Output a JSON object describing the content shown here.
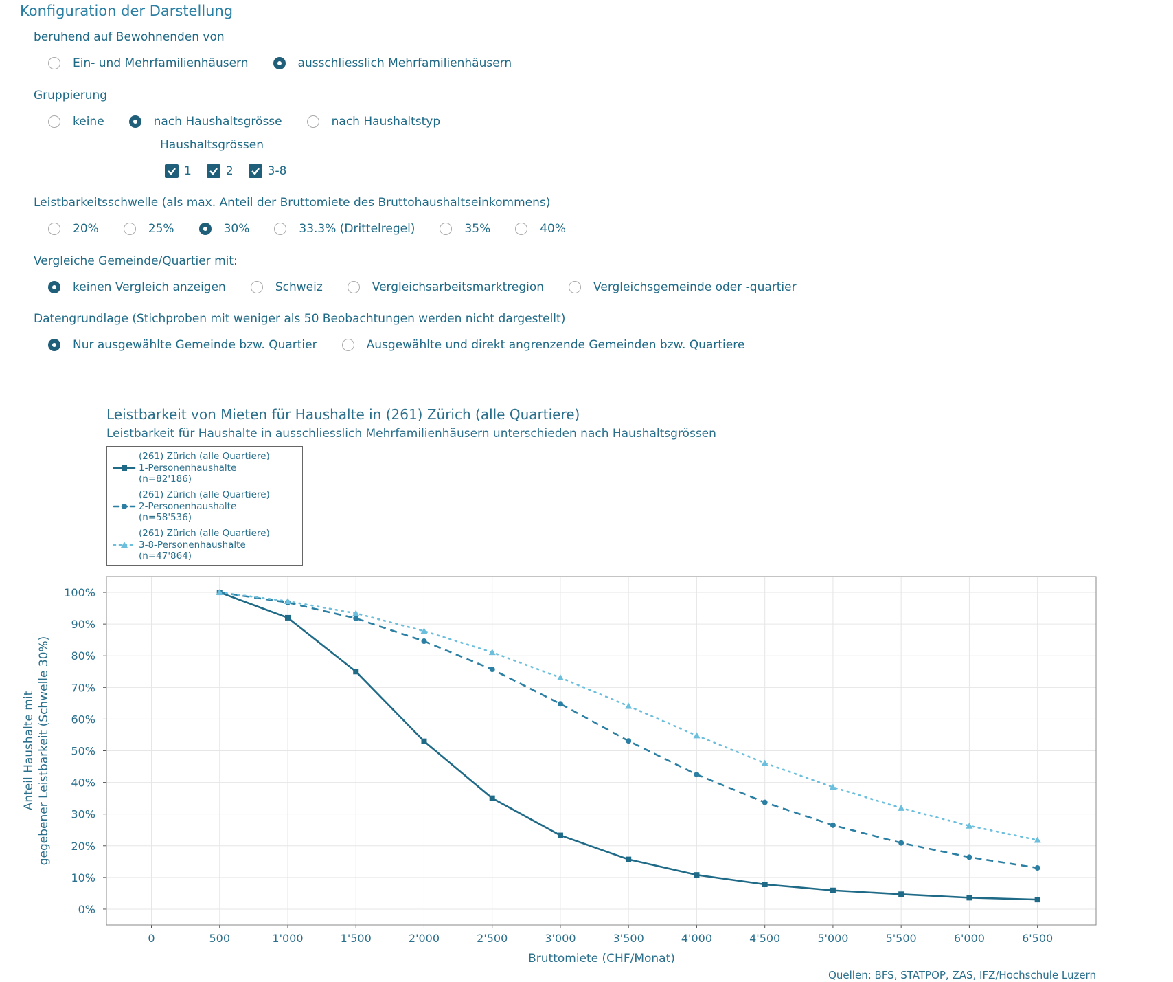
{
  "form": {
    "title": "Konfiguration der Darstellung",
    "sections": [
      {
        "label": "beruhend auf Bewohnenden von",
        "options": [
          {
            "label": "Ein- und Mehrfamilienhäusern",
            "selected": false
          },
          {
            "label": "ausschliesslich Mehrfamilienhäusern",
            "selected": true
          }
        ]
      },
      {
        "label": "Gruppierung",
        "options": [
          {
            "label": "keine",
            "selected": false
          },
          {
            "label": "nach Haushaltsgrösse",
            "selected": true
          },
          {
            "label": "nach Haushaltstyp",
            "selected": false
          }
        ],
        "sub": {
          "label": "Haushaltsgrössen",
          "checkboxes": [
            {
              "label": "1",
              "checked": true
            },
            {
              "label": "2",
              "checked": true
            },
            {
              "label": "3-8",
              "checked": true
            }
          ]
        }
      },
      {
        "label": "Leistbarkeitsschwelle (als max. Anteil der Bruttomiete des Bruttohaushaltseinkommens)",
        "options": [
          {
            "label": "20%",
            "selected": false
          },
          {
            "label": "25%",
            "selected": false
          },
          {
            "label": "30%",
            "selected": true
          },
          {
            "label": "33.3% (Drittelregel)",
            "selected": false
          },
          {
            "label": "35%",
            "selected": false
          },
          {
            "label": "40%",
            "selected": false
          }
        ]
      },
      {
        "label": "Vergleiche Gemeinde/Quartier mit:",
        "options": [
          {
            "label": "keinen Vergleich anzeigen",
            "selected": true
          },
          {
            "label": "Schweiz",
            "selected": false
          },
          {
            "label": "Vergleichsarbeitsmarktregion",
            "selected": false
          },
          {
            "label": "Vergleichsgemeinde oder -quartier",
            "selected": false
          }
        ]
      },
      {
        "label": "Datengrundlage (Stichproben mit weniger als 50 Beobachtungen werden nicht dargestellt)",
        "options": [
          {
            "label": "Nur ausgewählte Gemeinde bzw. Quartier",
            "selected": true
          },
          {
            "label": "Ausgewählte und direkt angrenzende Gemeinden bzw. Quartiere",
            "selected": false
          }
        ]
      }
    ]
  },
  "chart_data": {
    "type": "line",
    "title": "Leistbarkeit von Mieten für Haushalte in (261) Zürich (alle Quartiere)",
    "subtitle": "Leistbarkeit für Haushalte in ausschliesslich Mehrfamilienhäusern unterschieden nach Haushaltsgrössen",
    "xlabel": "Bruttomiete (CHF/Monat)",
    "ylabel": [
      "Anteil Haushalte mit",
      "gegebener Leistbarkeit (Schwelle 30%)"
    ],
    "source": "Quellen: BFS, STATPOP, ZAS, IFZ/Hochschule Luzern",
    "x": [
      500,
      1000,
      1500,
      2000,
      2500,
      3000,
      3500,
      4000,
      4500,
      5000,
      5500,
      6000,
      6500
    ],
    "series": [
      {
        "name": "(261) Zürich (alle Quartiere)\n1-Personenhaushalte\n(n=82'186)",
        "color": "#1f6a87",
        "line_style": "solid",
        "marker": "square",
        "values": [
          100,
          92,
          75,
          53,
          35,
          23.3,
          15.7,
          10.8,
          7.8,
          5.9,
          4.7,
          3.6,
          3.0
        ]
      },
      {
        "name": "(261) Zürich (alle Quartiere)\n2-Personenhaushalte\n(n=58'536)",
        "color": "#2b7fa3",
        "line_style": "dashed",
        "marker": "circle",
        "values": [
          100,
          96.8,
          91.8,
          84.6,
          75.7,
          64.8,
          53.1,
          42.5,
          33.7,
          26.5,
          20.9,
          16.4,
          13.0
        ]
      },
      {
        "name": "(261) Zürich (alle Quartiere)\n3-8-Personenhaushalte\n(n=47'864)",
        "color": "#6cbfdc",
        "line_style": "dotted",
        "marker": "triangle",
        "values": [
          100,
          97.2,
          93.4,
          87.8,
          81.1,
          73.1,
          64.1,
          54.8,
          46.1,
          38.5,
          31.9,
          26.3,
          21.8
        ]
      }
    ],
    "xlim": [
      -330,
      6930
    ],
    "ylim": [
      -5,
      105
    ],
    "xticks": [
      0,
      500,
      {
        "value": 1000,
        "label": "1'000"
      },
      {
        "value": 1500,
        "label": "1'500"
      },
      {
        "value": 2000,
        "label": "2'000"
      },
      {
        "value": 2500,
        "label": "2'500"
      },
      {
        "value": 3000,
        "label": "3'000"
      },
      {
        "value": 3500,
        "label": "3'500"
      },
      {
        "value": 4000,
        "label": "4'000"
      },
      {
        "value": 4500,
        "label": "4'500"
      },
      {
        "value": 5000,
        "label": "5'000"
      },
      {
        "value": 5500,
        "label": "5'500"
      },
      {
        "value": 6000,
        "label": "6'000"
      },
      {
        "value": 6500,
        "label": "6'500"
      }
    ],
    "yticks": [
      {
        "value": 0,
        "label": "0%"
      },
      {
        "value": 10,
        "label": "10%"
      },
      {
        "value": 20,
        "label": "20%"
      },
      {
        "value": 30,
        "label": "30%"
      },
      {
        "value": 40,
        "label": "40%"
      },
      {
        "value": 50,
        "label": "50%"
      },
      {
        "value": 60,
        "label": "60%"
      },
      {
        "value": 70,
        "label": "70%"
      },
      {
        "value": 80,
        "label": "80%"
      },
      {
        "value": 90,
        "label": "90%"
      },
      {
        "value": 100,
        "label": "100%"
      }
    ],
    "grid": true
  }
}
